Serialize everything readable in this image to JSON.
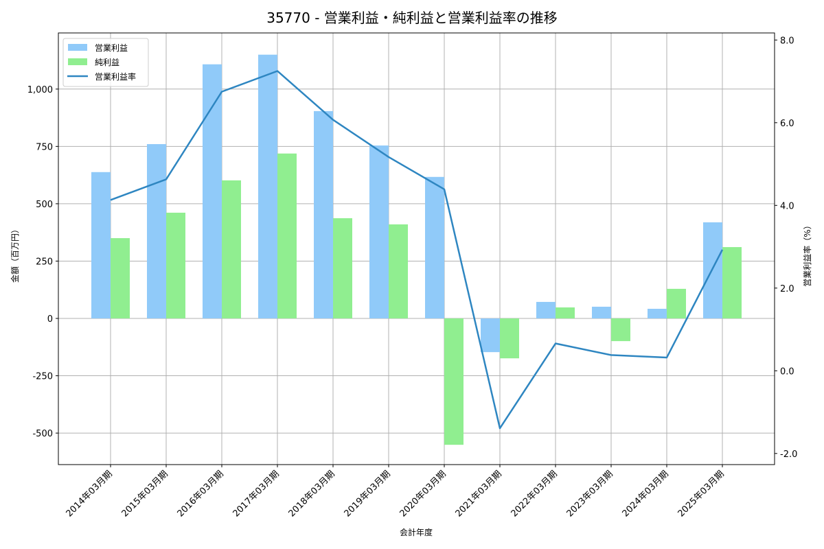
{
  "chart_data": {
    "type": "bar+line",
    "title": "35770 - 営業利益・純利益と営業利益率の推移",
    "xlabel": "会計年度",
    "ylabel": "金額（百万円）",
    "ylabel_right": "営業利益率（%）",
    "categories": [
      "2014年03月期",
      "2015年03月期",
      "2016年03月期",
      "2017年03月期",
      "2018年03月期",
      "2019年03月期",
      "2020年03月期",
      "2021年03月期",
      "2022年03月期",
      "2023年03月期",
      "2024年03月期",
      "2025年03月期"
    ],
    "series": [
      {
        "name": "営業利益",
        "type": "bar",
        "axis": "left",
        "color": "#90caf9",
        "values": [
          638,
          760,
          1108,
          1150,
          904,
          754,
          617,
          -147,
          72,
          51,
          42,
          419
        ]
      },
      {
        "name": "純利益",
        "type": "bar",
        "axis": "left",
        "color": "#90ee90",
        "values": [
          350,
          461,
          602,
          719,
          437,
          410,
          -551,
          -174,
          48,
          -99,
          129,
          311
        ]
      },
      {
        "name": "営業利益率",
        "type": "line",
        "axis": "right",
        "color": "#2e86c1",
        "values": [
          4.13,
          4.63,
          6.75,
          7.25,
          6.07,
          5.17,
          4.39,
          -1.39,
          0.66,
          0.38,
          0.32,
          2.93
        ]
      }
    ],
    "ylim": [
      -640,
      1240
    ],
    "ylim_right": [
      -2.25,
      8.15
    ],
    "yticks": [
      -500,
      -250,
      0,
      250,
      500,
      750,
      1000
    ],
    "ytick_labels": [
      "-500",
      "-250",
      "0",
      "250",
      "500",
      "750",
      "1,000"
    ],
    "yticks_right": [
      -2.0,
      0.0,
      2.0,
      4.0,
      6.0,
      8.0
    ],
    "ytick_labels_right": [
      "-2.0",
      "0.0",
      "2.0",
      "4.0",
      "6.0",
      "8.0"
    ],
    "grid": true,
    "legend_position": "upper left"
  }
}
